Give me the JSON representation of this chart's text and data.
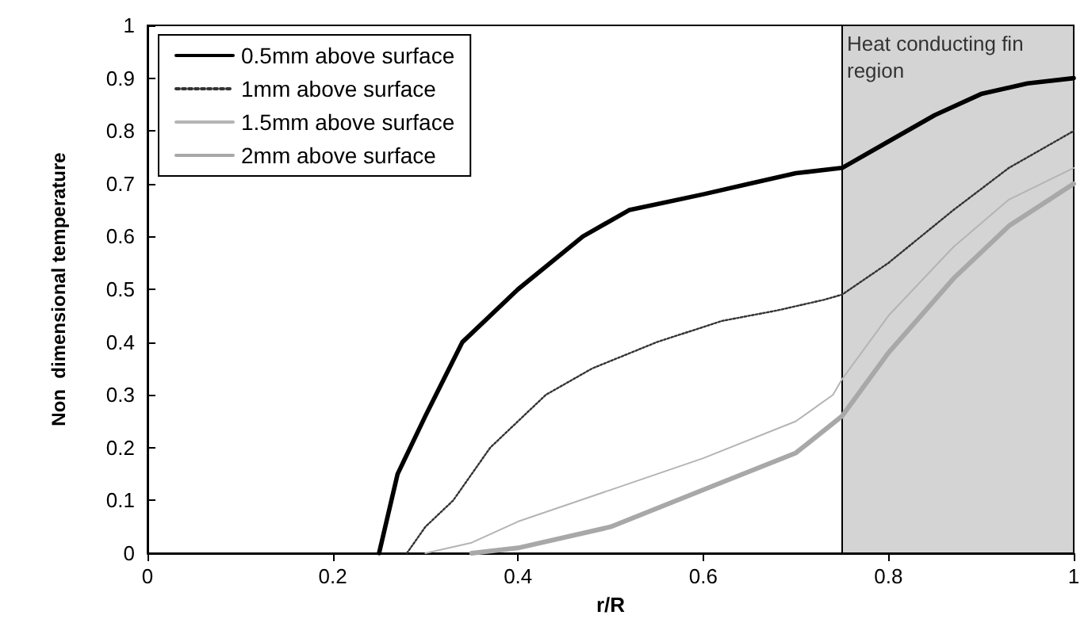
{
  "chart_data": {
    "type": "line",
    "xlabel": "r/R",
    "ylabel": "Non  dimensional temperature",
    "xlim": [
      0,
      1
    ],
    "xticks": [
      0,
      0.2,
      0.4,
      0.6,
      0.8,
      1
    ],
    "ylim": [
      0,
      1
    ],
    "yticks": [
      0,
      0.1,
      0.2,
      0.3,
      0.4,
      0.5,
      0.6,
      0.7,
      0.8,
      0.9,
      1
    ],
    "grid": false,
    "legend": "top left",
    "marker": "none",
    "bands": [
      {
        "axis": "x",
        "from": 0.75,
        "to": 1,
        "label": "Heat conducting fin region",
        "color": "#d4d4d4"
      }
    ],
    "series": [
      {
        "name": "0.5mm above surface",
        "color": "#000000",
        "line_style": "solid",
        "x": [
          0.25,
          0.27,
          0.3,
          0.34,
          0.4,
          0.47,
          0.52,
          0.6,
          0.65,
          0.7,
          0.75,
          0.8,
          0.85,
          0.9,
          0.95,
          1
        ],
        "values": [
          0,
          0.15,
          0.26,
          0.4,
          0.5,
          0.6,
          0.65,
          0.68,
          0.7,
          0.72,
          0.73,
          0.78,
          0.83,
          0.87,
          0.89,
          0.9
        ]
      },
      {
        "name": "1mm above surface",
        "color": "#333333",
        "line_style": "dotted",
        "x": [
          0.28,
          0.3,
          0.33,
          0.37,
          0.43,
          0.48,
          0.55,
          0.62,
          0.68,
          0.73,
          0.75,
          0.8,
          0.87,
          0.93,
          1
        ],
        "values": [
          0,
          0.05,
          0.1,
          0.2,
          0.3,
          0.35,
          0.4,
          0.44,
          0.46,
          0.48,
          0.49,
          0.55,
          0.65,
          0.73,
          0.8
        ]
      },
      {
        "name": "1.5mm above surface",
        "color": "#b4b4b4",
        "line_style": "solid",
        "x": [
          0.3,
          0.35,
          0.4,
          0.5,
          0.6,
          0.7,
          0.74,
          0.75,
          0.8,
          0.87,
          0.93,
          1
        ],
        "values": [
          0,
          0.02,
          0.06,
          0.12,
          0.18,
          0.25,
          0.3,
          0.33,
          0.45,
          0.58,
          0.67,
          0.73
        ]
      },
      {
        "name": "2mm above surface",
        "color": "#a8a8a8",
        "line_style": "solid",
        "x": [
          0.35,
          0.4,
          0.5,
          0.6,
          0.7,
          0.75,
          0.8,
          0.87,
          0.93,
          1
        ],
        "values": [
          0,
          0.01,
          0.05,
          0.12,
          0.19,
          0.26,
          0.38,
          0.52,
          0.62,
          0.7
        ]
      }
    ]
  }
}
